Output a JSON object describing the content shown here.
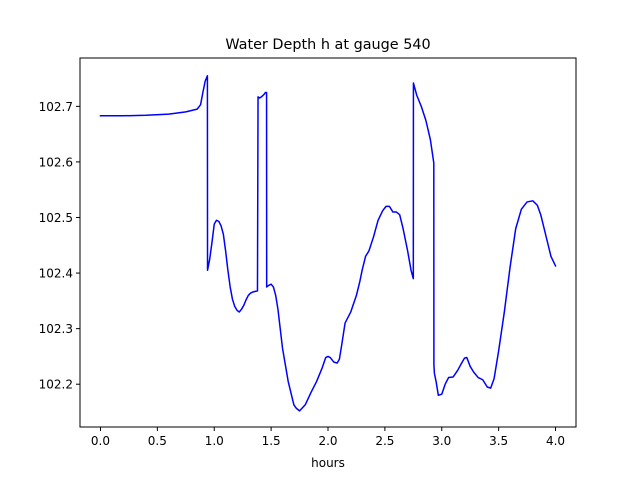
{
  "chart_data": {
    "type": "line",
    "title": "Water Depth h at gauge 540",
    "xlabel": "hours",
    "ylabel": "",
    "xlim": [
      -0.18,
      4.18
    ],
    "ylim": [
      102.123,
      102.787
    ],
    "xticks": [
      0.0,
      0.5,
      1.0,
      1.5,
      2.0,
      2.5,
      3.0,
      3.5,
      4.0
    ],
    "xtick_labels": [
      "0.0",
      "0.5",
      "1.0",
      "1.5",
      "2.0",
      "2.5",
      "3.0",
      "3.5",
      "4.0"
    ],
    "yticks": [
      102.2,
      102.3,
      102.4,
      102.5,
      102.6,
      102.7
    ],
    "ytick_labels": [
      "102.2",
      "102.3",
      "102.4",
      "102.5",
      "102.6",
      "102.7"
    ],
    "grid": false,
    "legend": "none",
    "series": [
      {
        "color": "#0000ff",
        "x": [
          0.0,
          0.2,
          0.4,
          0.6,
          0.75,
          0.85,
          0.88,
          0.9,
          0.92,
          0.94,
          0.941,
          0.96,
          0.98,
          1.0,
          1.02,
          1.04,
          1.06,
          1.08,
          1.1,
          1.12,
          1.14,
          1.16,
          1.18,
          1.2,
          1.22,
          1.24,
          1.26,
          1.28,
          1.3,
          1.32,
          1.34,
          1.36,
          1.38,
          1.385,
          1.4,
          1.42,
          1.44,
          1.45,
          1.46,
          1.461,
          1.48,
          1.5,
          1.52,
          1.54,
          1.56,
          1.6,
          1.65,
          1.7,
          1.72,
          1.75,
          1.8,
          1.85,
          1.9,
          1.95,
          1.98,
          2.0,
          2.02,
          2.05,
          2.08,
          2.1,
          2.12,
          2.15,
          2.2,
          2.25,
          2.28,
          2.3,
          2.33,
          2.36,
          2.4,
          2.44,
          2.48,
          2.51,
          2.54,
          2.57,
          2.6,
          2.63,
          2.66,
          2.7,
          2.73,
          2.75,
          2.751,
          2.78,
          2.82,
          2.86,
          2.9,
          2.93,
          2.931,
          2.935,
          2.95,
          2.97,
          3.0,
          3.03,
          3.06,
          3.1,
          3.14,
          3.18,
          3.2,
          3.22,
          3.25,
          3.28,
          3.32,
          3.36,
          3.4,
          3.43,
          3.46,
          3.5,
          3.55,
          3.6,
          3.65,
          3.7,
          3.75,
          3.8,
          3.84,
          3.87,
          3.9,
          3.93,
          3.96,
          4.0
        ],
        "y": [
          102.683,
          102.683,
          102.684,
          102.686,
          102.69,
          102.695,
          102.703,
          102.725,
          102.745,
          102.755,
          102.405,
          102.425,
          102.455,
          102.488,
          102.495,
          102.493,
          102.485,
          102.47,
          102.44,
          102.405,
          102.375,
          102.353,
          102.34,
          102.333,
          102.33,
          102.335,
          102.342,
          102.352,
          102.36,
          102.364,
          102.366,
          102.367,
          102.368,
          102.717,
          102.715,
          102.718,
          102.722,
          102.725,
          102.725,
          102.375,
          102.378,
          102.38,
          102.375,
          102.36,
          102.335,
          102.265,
          102.205,
          102.163,
          102.157,
          102.152,
          102.163,
          102.185,
          102.205,
          102.23,
          102.248,
          102.25,
          102.248,
          102.24,
          102.238,
          102.245,
          102.27,
          102.31,
          102.33,
          102.36,
          102.385,
          102.405,
          102.43,
          102.44,
          102.465,
          102.495,
          102.512,
          102.52,
          102.52,
          102.51,
          102.51,
          102.505,
          102.48,
          102.44,
          102.405,
          102.39,
          102.742,
          102.72,
          102.7,
          102.675,
          102.64,
          102.598,
          102.235,
          102.22,
          102.205,
          102.18,
          102.182,
          102.2,
          102.212,
          102.213,
          102.225,
          102.24,
          102.247,
          102.248,
          102.232,
          102.222,
          102.212,
          102.208,
          102.195,
          102.193,
          102.21,
          102.26,
          102.33,
          102.41,
          102.48,
          102.515,
          102.528,
          102.53,
          102.522,
          102.505,
          102.48,
          102.455,
          102.43,
          102.413
        ]
      }
    ]
  }
}
